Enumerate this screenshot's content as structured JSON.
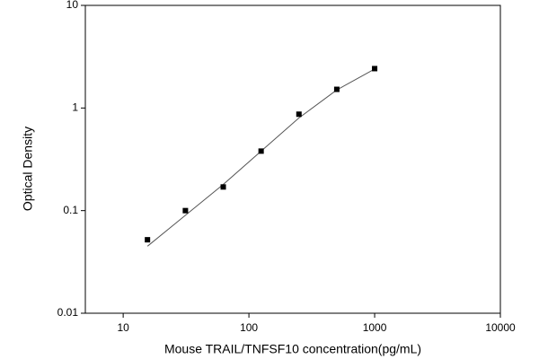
{
  "chart_data": {
    "type": "scatter",
    "x_label": "Mouse TRAIL/TNFSF10 concentration(pg/mL)",
    "y_label": "Optical Density",
    "x": [
      15.6,
      31.25,
      62.5,
      125,
      250,
      500,
      1000
    ],
    "values": [
      0.052,
      0.1,
      0.17,
      0.38,
      0.87,
      1.52,
      2.42
    ],
    "color": "#000000",
    "curve": {
      "x": [
        15.6,
        31.25,
        62.5,
        125,
        250,
        500,
        1000
      ],
      "values": [
        0.045,
        0.09,
        0.18,
        0.38,
        0.8,
        1.5,
        2.4
      ]
    },
    "xlim": [
      5,
      10000
    ],
    "ylim": [
      0.01,
      10
    ],
    "xticks": [
      10,
      100,
      1000,
      10000
    ],
    "yticks": [
      0.01,
      0.1,
      1,
      10
    ],
    "xscale": "log",
    "yscale": "log"
  }
}
